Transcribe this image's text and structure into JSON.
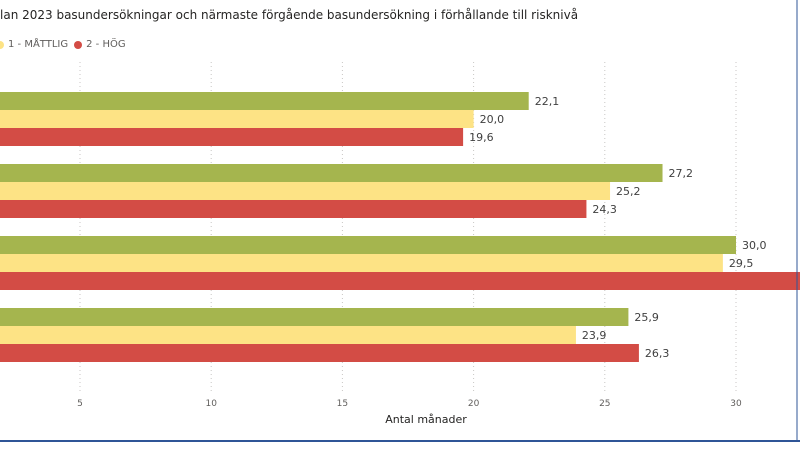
{
  "chart_data": {
    "type": "bar",
    "orientation": "horizontal",
    "title": "lan 2023 basundersökningar och närmaste förgående basundersökning i förhållande till risknivå",
    "xlabel": "Antal månader",
    "ylabel": "",
    "xlim": [
      2,
      32.5
    ],
    "x_ticks": [
      5,
      10,
      15,
      20,
      25,
      30
    ],
    "x_tick_labels": [
      "5",
      "10",
      "15",
      "20",
      "25",
      "30"
    ],
    "grid": true,
    "legend_position": "top-left",
    "categories": [
      "",
      "",
      "",
      ""
    ],
    "series": [
      {
        "name": "",
        "color": "#a5b54e",
        "values": [
          22.1,
          27.2,
          30.0,
          25.9
        ],
        "labels": [
          "22,1",
          "27,2",
          "30,0",
          "25,9"
        ]
      },
      {
        "name": "1 - MÅTTLIG",
        "color": "#fde385",
        "values": [
          20.0,
          25.2,
          29.5,
          23.9
        ],
        "labels": [
          "20,0",
          "25,2",
          "29,5",
          "23,9"
        ]
      },
      {
        "name": "2 - HÖG",
        "color": "#d34c45",
        "values": [
          19.6,
          24.3,
          32.5,
          26.3
        ],
        "labels": [
          "19,6",
          "24,3",
          "",
          "26,3"
        ]
      }
    ]
  }
}
